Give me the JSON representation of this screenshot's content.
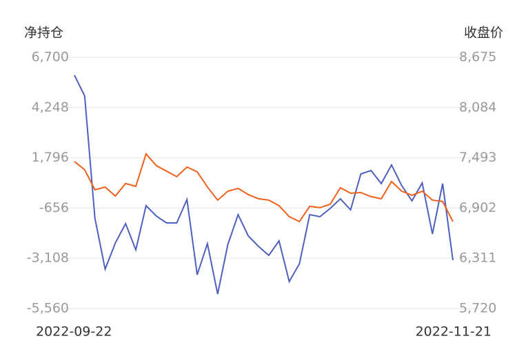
{
  "chart_data": {
    "type": "line",
    "y_label": "净持仓",
    "y2_label": "收盘价",
    "categories": [
      "2022-09-22",
      null,
      null,
      null,
      null,
      null,
      null,
      null,
      null,
      null,
      null,
      null,
      null,
      null,
      null,
      null,
      null,
      null,
      null,
      null,
      null,
      null,
      null,
      null,
      null,
      null,
      null,
      null,
      null,
      null,
      null,
      null,
      null,
      null,
      null,
      null,
      null,
      "2022-11-21"
    ],
    "series": [
      {
        "color": "#4e5fbf",
        "values": [
          5824,
          4814,
          -1148,
          -3640,
          -2360,
          -1417,
          -2697,
          -541,
          -1047,
          -1384,
          -1384,
          -238,
          -3910,
          -2394,
          -4853,
          -2428,
          -979,
          -2023,
          -2529,
          -2967,
          -2259,
          -4246,
          -3371,
          -979,
          -1080,
          -676,
          -205,
          -744,
          1008,
          1176,
          536,
          1446,
          435,
          -306,
          570,
          -1922,
          536,
          -3203
        ]
      },
      {
        "color": "#f0601a",
        "axis": "y2",
        "values": [
          7449,
          7352,
          7117,
          7149,
          7043,
          7190,
          7157,
          7539,
          7401,
          7336,
          7271,
          7384,
          7328,
          7149,
          6995,
          7100,
          7133,
          7060,
          7011,
          6995,
          6930,
          6800,
          6743,
          6922,
          6906,
          6946,
          7141,
          7076,
          7084,
          7036,
          7011,
          7214,
          7100,
          7052,
          7100,
          6995,
          6979,
          6743
        ]
      }
    ],
    "ylim": [
      -5560,
      6700
    ],
    "yticks": [
      {
        "value": 6700,
        "label": "6,700"
      },
      {
        "value": 4248,
        "label": "4,248"
      },
      {
        "value": 1796,
        "label": "1,796"
      },
      -656,
      {
        "value": -3108,
        "label": "-3,108"
      },
      {
        "value": -5560,
        "label": "-5,560"
      }
    ],
    "y2lim": [
      5720,
      8675
    ],
    "y2ticks": [
      {
        "value": 8675,
        "label": "8,675"
      },
      {
        "value": 8084,
        "label": "8,084"
      },
      {
        "value": 7493,
        "label": "7,493"
      },
      {
        "value": 6902,
        "label": "6,902"
      },
      {
        "value": 6311,
        "label": "6,311"
      },
      {
        "value": 5720,
        "label": "5,720"
      }
    ],
    "grid": true
  }
}
